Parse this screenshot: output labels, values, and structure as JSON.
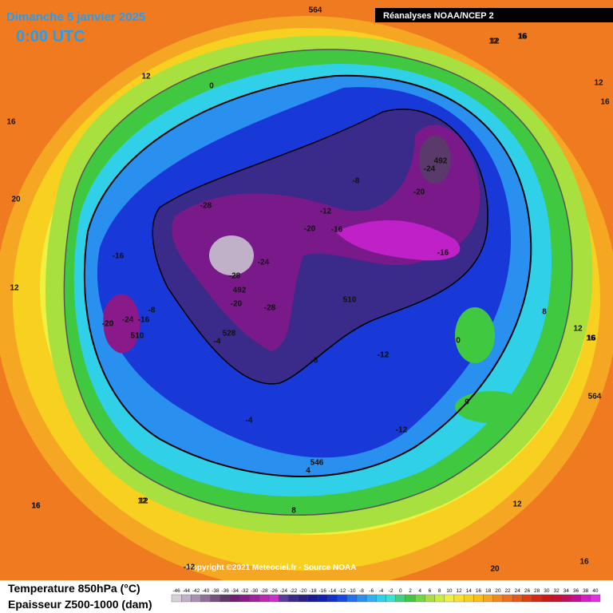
{
  "header": {
    "date": "Dimanche 5 janvier 2025",
    "time": "0:00 UTC",
    "source": "Réanalyses NOAA/NCEP 2"
  },
  "copyright": "Copyright ©2021 Meteociel.fr - Source NOAA",
  "legend": {
    "temperature": "Temperature 850hPa (°C)",
    "thickness": "Epaisseur Z500-1000 (dam)",
    "scale": [
      "-46",
      "-44",
      "-42",
      "-40",
      "-38",
      "-36",
      "-34",
      "-32",
      "-30",
      "-28",
      "-26",
      "-24",
      "-22",
      "-20",
      "-18",
      "-16",
      "-14",
      "-12",
      "-10",
      "-8",
      "-6",
      "-4",
      "-2",
      "0",
      "2",
      "4",
      "6",
      "8",
      "10",
      "12",
      "14",
      "16",
      "18",
      "20",
      "22",
      "24",
      "26",
      "28",
      "30",
      "32",
      "34",
      "36",
      "38",
      "40"
    ]
  },
  "map_labels": [
    "564",
    "12",
    "16",
    "12",
    "16",
    "20",
    "12",
    "16",
    "0",
    "-28",
    "-16",
    "-20",
    "-24",
    "-16",
    "510",
    "-8",
    "528",
    "-4",
    "-28",
    "492",
    "-20",
    "-24",
    "-28",
    "-8",
    "-12",
    "-20",
    "-16",
    "-24",
    "492",
    "-20",
    "-16",
    "-12",
    "510",
    "-12",
    "-8",
    "-12",
    "-4",
    "0",
    "0",
    "8",
    "12",
    "16",
    "564",
    "12",
    "16",
    "12",
    "20",
    "16",
    "12",
    "8",
    "4",
    "546",
    "16",
    "12",
    "-12",
    "16",
    "12",
    "-20",
    "16"
  ]
}
